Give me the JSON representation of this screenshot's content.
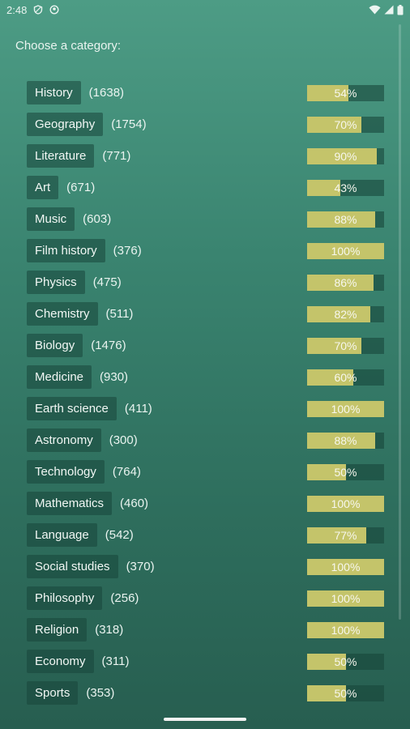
{
  "status": {
    "time": "2:48",
    "icons": [
      "shield-icon",
      "vpn-icon",
      "wifi-icon",
      "signal-icon",
      "battery-icon"
    ]
  },
  "prompt": "Choose a category:",
  "colors": {
    "bar_fill": "#c4c46a",
    "bar_track": "#1e5648",
    "button_bg": "#1f5a4a"
  },
  "categories": [
    {
      "label": "History",
      "count": "(1638)",
      "percent_label": "54%",
      "percent": 54
    },
    {
      "label": "Geography",
      "count": "(1754)",
      "percent_label": "70%",
      "percent": 70
    },
    {
      "label": "Literature",
      "count": "(771)",
      "percent_label": "90%",
      "percent": 90
    },
    {
      "label": "Art",
      "count": "(671)",
      "percent_label": "43%",
      "percent": 43
    },
    {
      "label": "Music",
      "count": "(603)",
      "percent_label": "88%",
      "percent": 88
    },
    {
      "label": "Film history",
      "count": "(376)",
      "percent_label": "100%",
      "percent": 100
    },
    {
      "label": "Physics",
      "count": "(475)",
      "percent_label": "86%",
      "percent": 86
    },
    {
      "label": "Chemistry",
      "count": "(511)",
      "percent_label": "82%",
      "percent": 82
    },
    {
      "label": "Biology",
      "count": "(1476)",
      "percent_label": "70%",
      "percent": 70
    },
    {
      "label": "Medicine",
      "count": "(930)",
      "percent_label": "60%",
      "percent": 60
    },
    {
      "label": "Earth science",
      "count": "(411)",
      "percent_label": "100%",
      "percent": 100
    },
    {
      "label": "Astronomy",
      "count": "(300)",
      "percent_label": "88%",
      "percent": 88
    },
    {
      "label": "Technology",
      "count": "(764)",
      "percent_label": "50%",
      "percent": 50
    },
    {
      "label": "Mathematics",
      "count": "(460)",
      "percent_label": "100%",
      "percent": 100
    },
    {
      "label": "Language",
      "count": "(542)",
      "percent_label": "77%",
      "percent": 77
    },
    {
      "label": "Social studies",
      "count": "(370)",
      "percent_label": "100%",
      "percent": 100
    },
    {
      "label": "Philosophy",
      "count": "(256)",
      "percent_label": "100%",
      "percent": 100
    },
    {
      "label": "Religion",
      "count": "(318)",
      "percent_label": "100%",
      "percent": 100
    },
    {
      "label": "Economy",
      "count": "(311)",
      "percent_label": "50%",
      "percent": 50
    },
    {
      "label": "Sports",
      "count": "(353)",
      "percent_label": "50%",
      "percent": 50
    }
  ]
}
